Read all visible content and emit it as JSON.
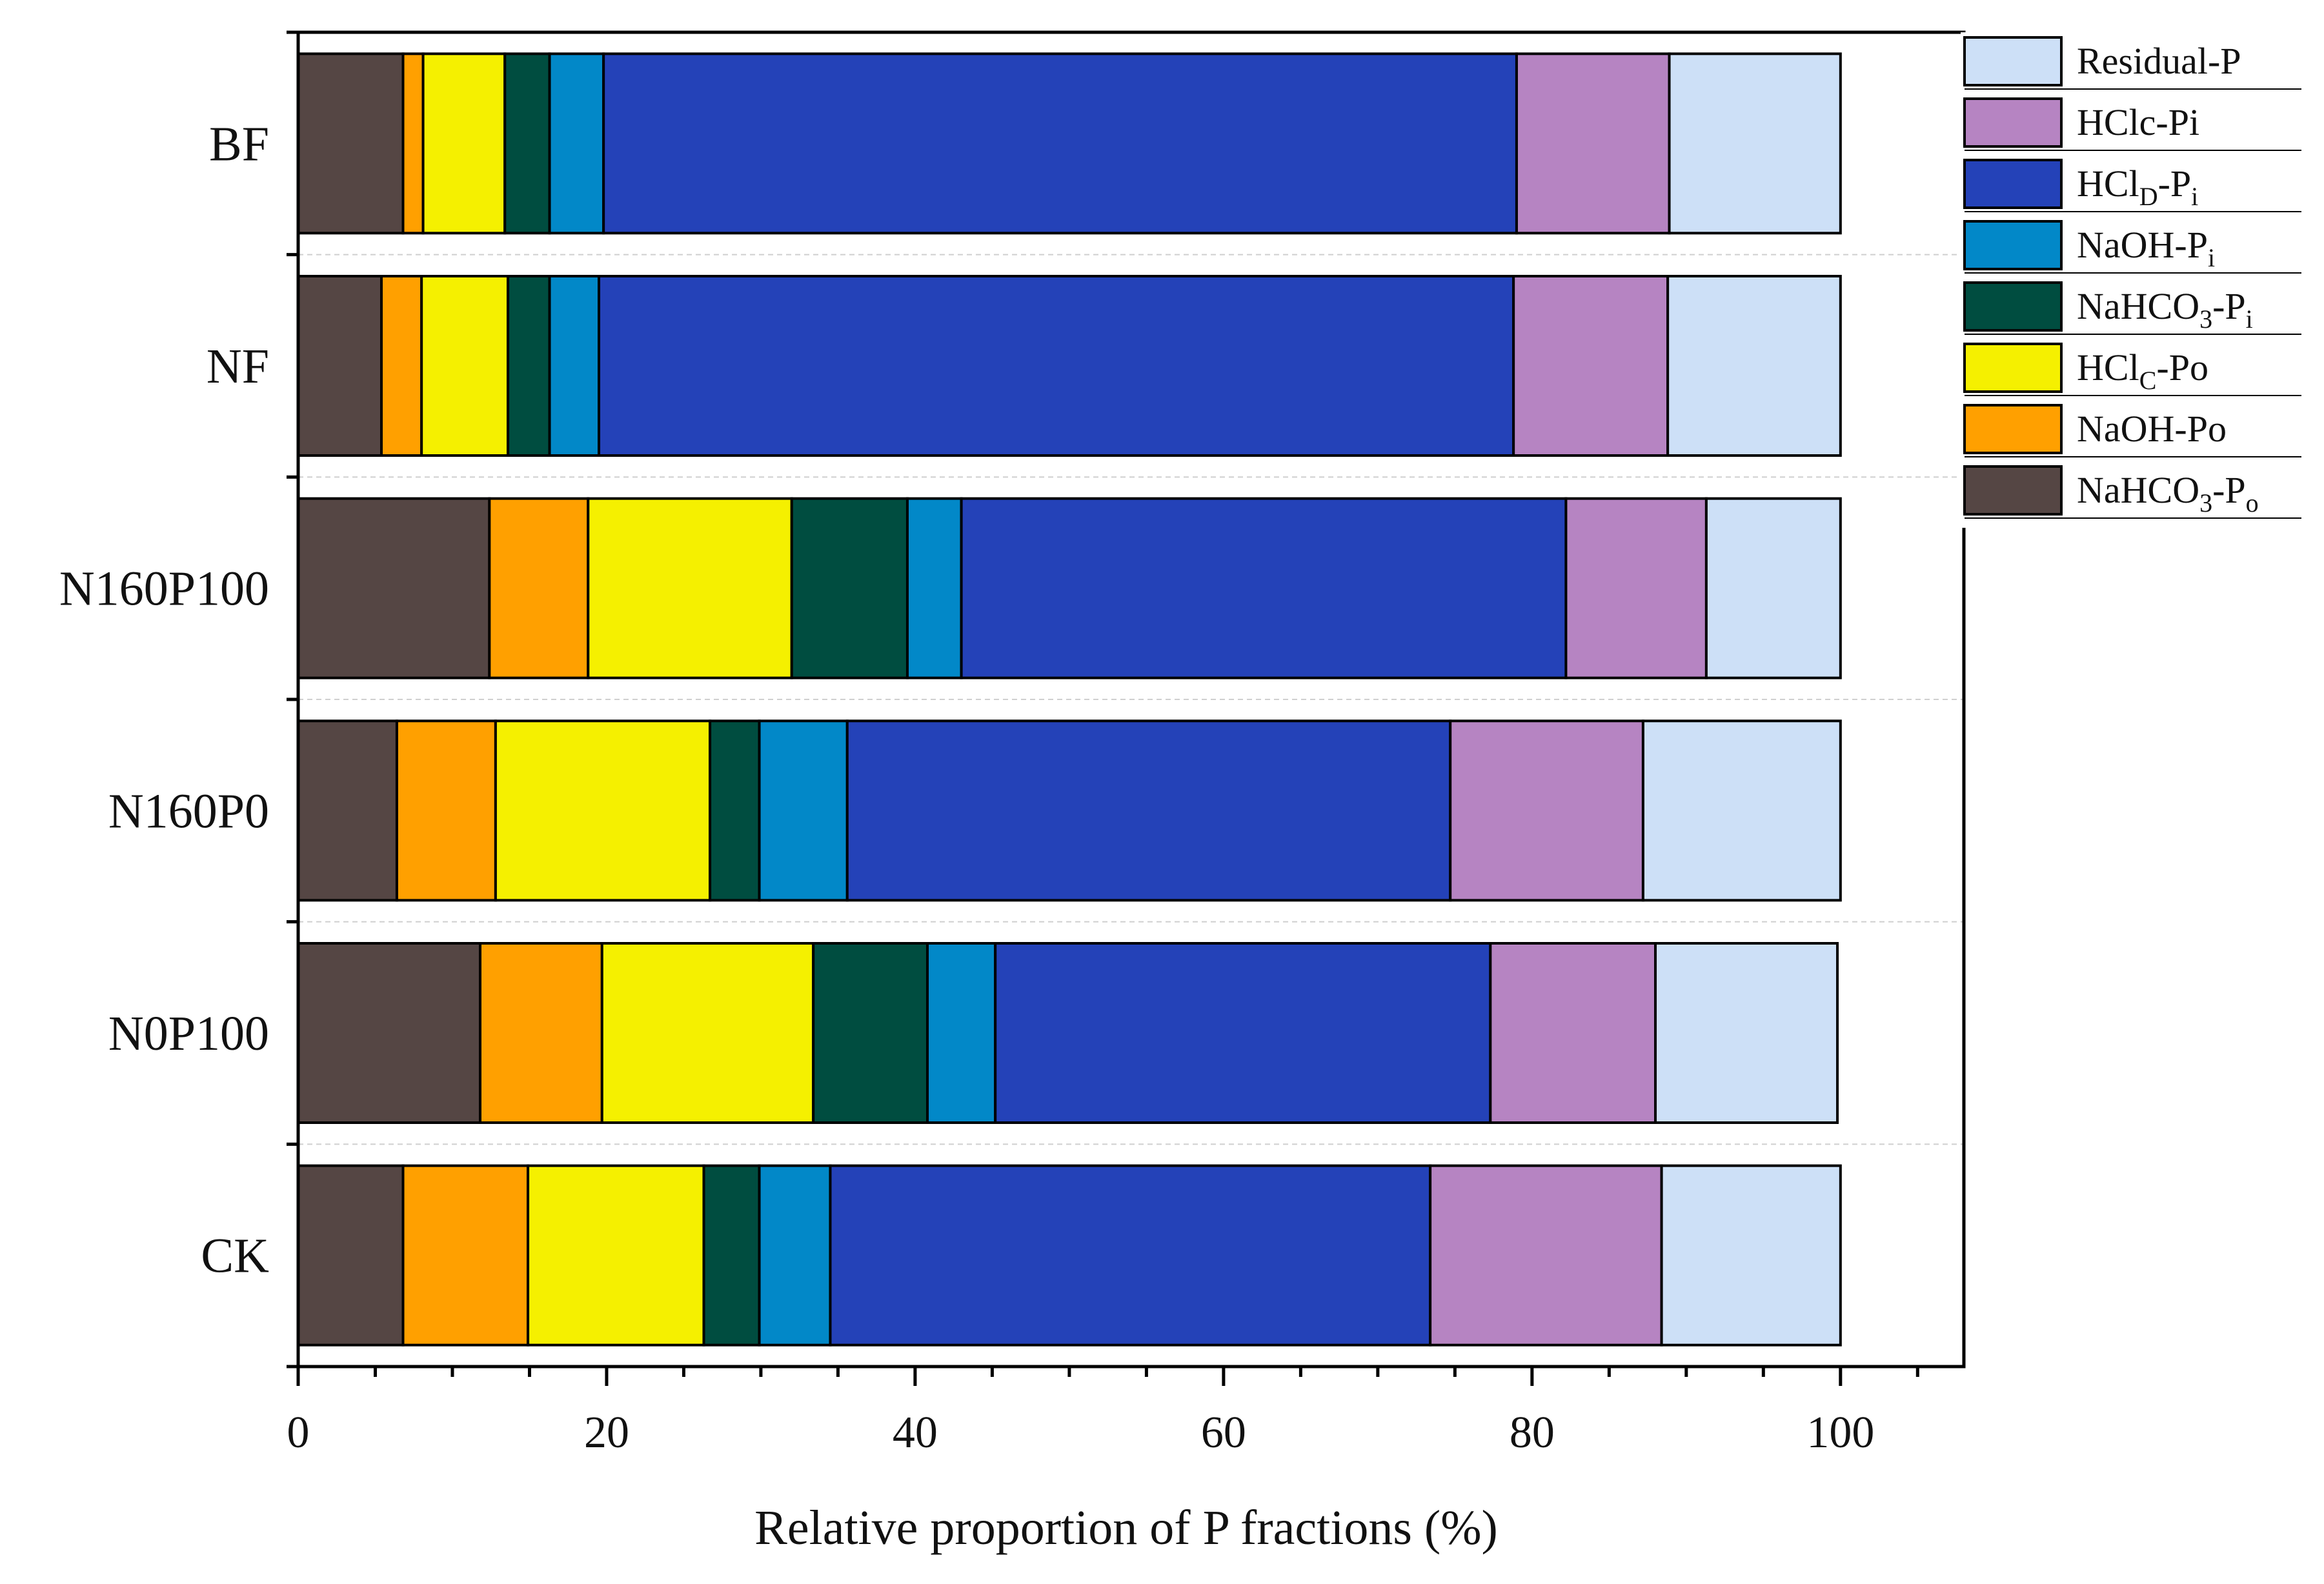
{
  "chart_data": {
    "type": "bar",
    "orientation": "horizontal",
    "stacked": true,
    "title": "",
    "xlabel": "Relative proportion of P fractions (%)",
    "ylabel": "",
    "xlim": [
      0,
      108
    ],
    "x_ticks": [
      0,
      20,
      40,
      60,
      80,
      100
    ],
    "x_tick_labels": [
      "0",
      "20",
      "40",
      "60",
      "80",
      "100"
    ],
    "grid": false,
    "legend_position": "top-right",
    "categories": [
      "BF",
      "NF",
      "N160P100",
      "N160P0",
      "N0P100",
      "CK"
    ],
    "series": [
      {
        "name": "NaHCO3-Po",
        "color": "#554644",
        "values": [
          6.8,
          5.4,
          12.4,
          6.4,
          11.8,
          6.8
        ]
      },
      {
        "name": "NaOH-Po",
        "color": "#ffa000",
        "values": [
          1.3,
          2.6,
          6.4,
          6.4,
          7.9,
          8.1
        ]
      },
      {
        "name": "HClC-Po",
        "color": "#f5f000",
        "values": [
          5.3,
          5.6,
          13.2,
          13.9,
          13.7,
          11.4
        ]
      },
      {
        "name": "NaHCO3-Pi",
        "color": "#004d40",
        "values": [
          2.9,
          2.7,
          7.5,
          3.2,
          7.4,
          3.6
        ]
      },
      {
        "name": "NaOH-Pi",
        "color": "#0288c8",
        "values": [
          3.5,
          3.2,
          3.5,
          5.7,
          4.4,
          4.6
        ]
      },
      {
        "name": "HClD-Pi",
        "color": "#2442b8",
        "values": [
          59.2,
          59.3,
          39.2,
          39.1,
          32.1,
          38.9
        ]
      },
      {
        "name": "HClc-Pi",
        "color": "#b684c2",
        "values": [
          9.9,
          10.0,
          9.1,
          12.5,
          10.7,
          15.0
        ]
      },
      {
        "name": "Residual-P",
        "color": "#cde0f7",
        "values": [
          11.1,
          11.2,
          8.7,
          12.8,
          11.8,
          11.6
        ]
      }
    ],
    "legend": [
      {
        "key": "Residual-P",
        "base": "Residual-P",
        "parts": []
      },
      {
        "key": "HClc-Pi",
        "base": "HClc-Pi",
        "parts": []
      },
      {
        "key": "HClD-Pi",
        "base": "HCl",
        "parts": [
          {
            "t": "D",
            "sub": true
          },
          {
            "t": "-P",
            "sub": false
          },
          {
            "t": "i",
            "sub": true
          }
        ]
      },
      {
        "key": "NaOH-Pi",
        "base": "NaOH-P",
        "parts": [
          {
            "t": "i",
            "sub": true
          }
        ]
      },
      {
        "key": "NaHCO3-Pi",
        "base": "NaHCO",
        "parts": [
          {
            "t": "3",
            "sub": true
          },
          {
            "t": "-P",
            "sub": false
          },
          {
            "t": "i",
            "sub": true
          }
        ]
      },
      {
        "key": "HClC-Po",
        "base": "HCl",
        "parts": [
          {
            "t": "C",
            "sub": true
          },
          {
            "t": "-Po",
            "sub": false
          }
        ]
      },
      {
        "key": "NaOH-Po",
        "base": "NaOH-Po",
        "parts": []
      },
      {
        "key": "NaHCO3-Po",
        "base": "NaHCO",
        "parts": [
          {
            "t": "3",
            "sub": true
          },
          {
            "t": "-P",
            "sub": false
          },
          {
            "t": "o",
            "sub": true
          }
        ]
      }
    ]
  }
}
